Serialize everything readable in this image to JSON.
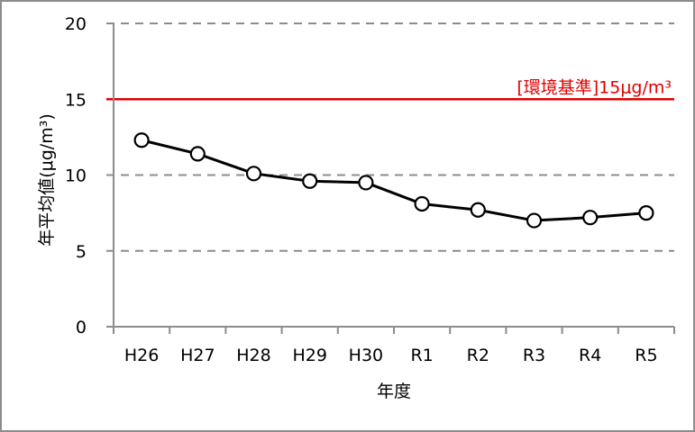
{
  "chart_data": {
    "type": "line",
    "title": "",
    "xlabel": "年度",
    "ylabel": "年平均値(μg/m³)",
    "categories": [
      "H26",
      "H27",
      "H28",
      "H29",
      "H30",
      "R1",
      "R2",
      "R3",
      "R4",
      "R5"
    ],
    "series": [
      {
        "name": "年平均値",
        "values": [
          12.3,
          11.4,
          10.1,
          9.6,
          9.5,
          8.1,
          7.7,
          7.0,
          7.2,
          7.5
        ],
        "color": "#000000",
        "marker": "open-circle"
      }
    ],
    "yticks": [
      0,
      5,
      10,
      15,
      20
    ],
    "ylim": [
      0,
      20
    ],
    "grid": "horizontal-dashed",
    "reference_line": {
      "value": 15,
      "label": "[環境基準]15μg/m³",
      "color": "#e00000"
    },
    "legend": "none"
  },
  "labels": {
    "xlabel": "年度",
    "ylabel": "年平均値(μg/m³)",
    "ref_label": "[環境基準]15μg/m³"
  }
}
